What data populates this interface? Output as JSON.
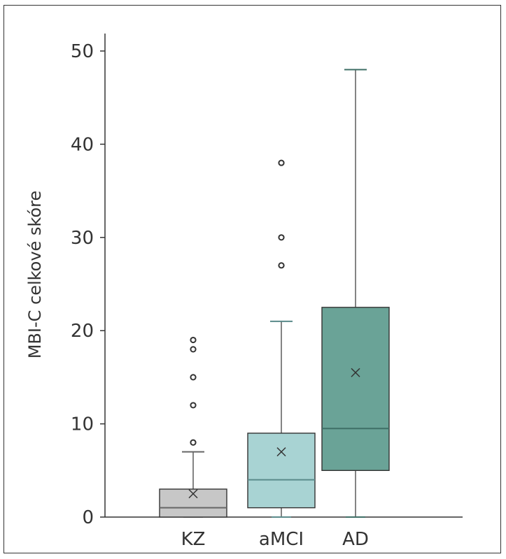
{
  "chart_data": {
    "type": "boxplot",
    "title": "",
    "xlabel": "",
    "ylabel": "MBI-C celkové skóre",
    "ylim": [
      0,
      50
    ],
    "yticks": [
      0,
      10,
      20,
      30,
      40,
      50
    ],
    "grid": false,
    "legend": "none",
    "categories": [
      "KZ",
      "aMCI",
      "AD"
    ],
    "series": [
      {
        "category": "KZ",
        "color": "#c7c7c7",
        "edge_color": "#666666",
        "min": 0,
        "q1": 0,
        "median": 1,
        "q3": 3,
        "max": 7,
        "mean": 2.5,
        "outliers": [
          8,
          12,
          15,
          18,
          19
        ]
      },
      {
        "category": "aMCI",
        "color": "#a8d3d3",
        "edge_color": "#5a8a8a",
        "min": 0,
        "q1": 1,
        "median": 4,
        "q3": 9,
        "max": 21,
        "mean": 7,
        "outliers": [
          27,
          30,
          38
        ]
      },
      {
        "category": "AD",
        "color": "#6aa397",
        "edge_color": "#3f6f66",
        "min": 0,
        "q1": 5,
        "median": 9.5,
        "q3": 22.5,
        "max": 48,
        "mean": 15.5,
        "outliers": []
      }
    ]
  }
}
